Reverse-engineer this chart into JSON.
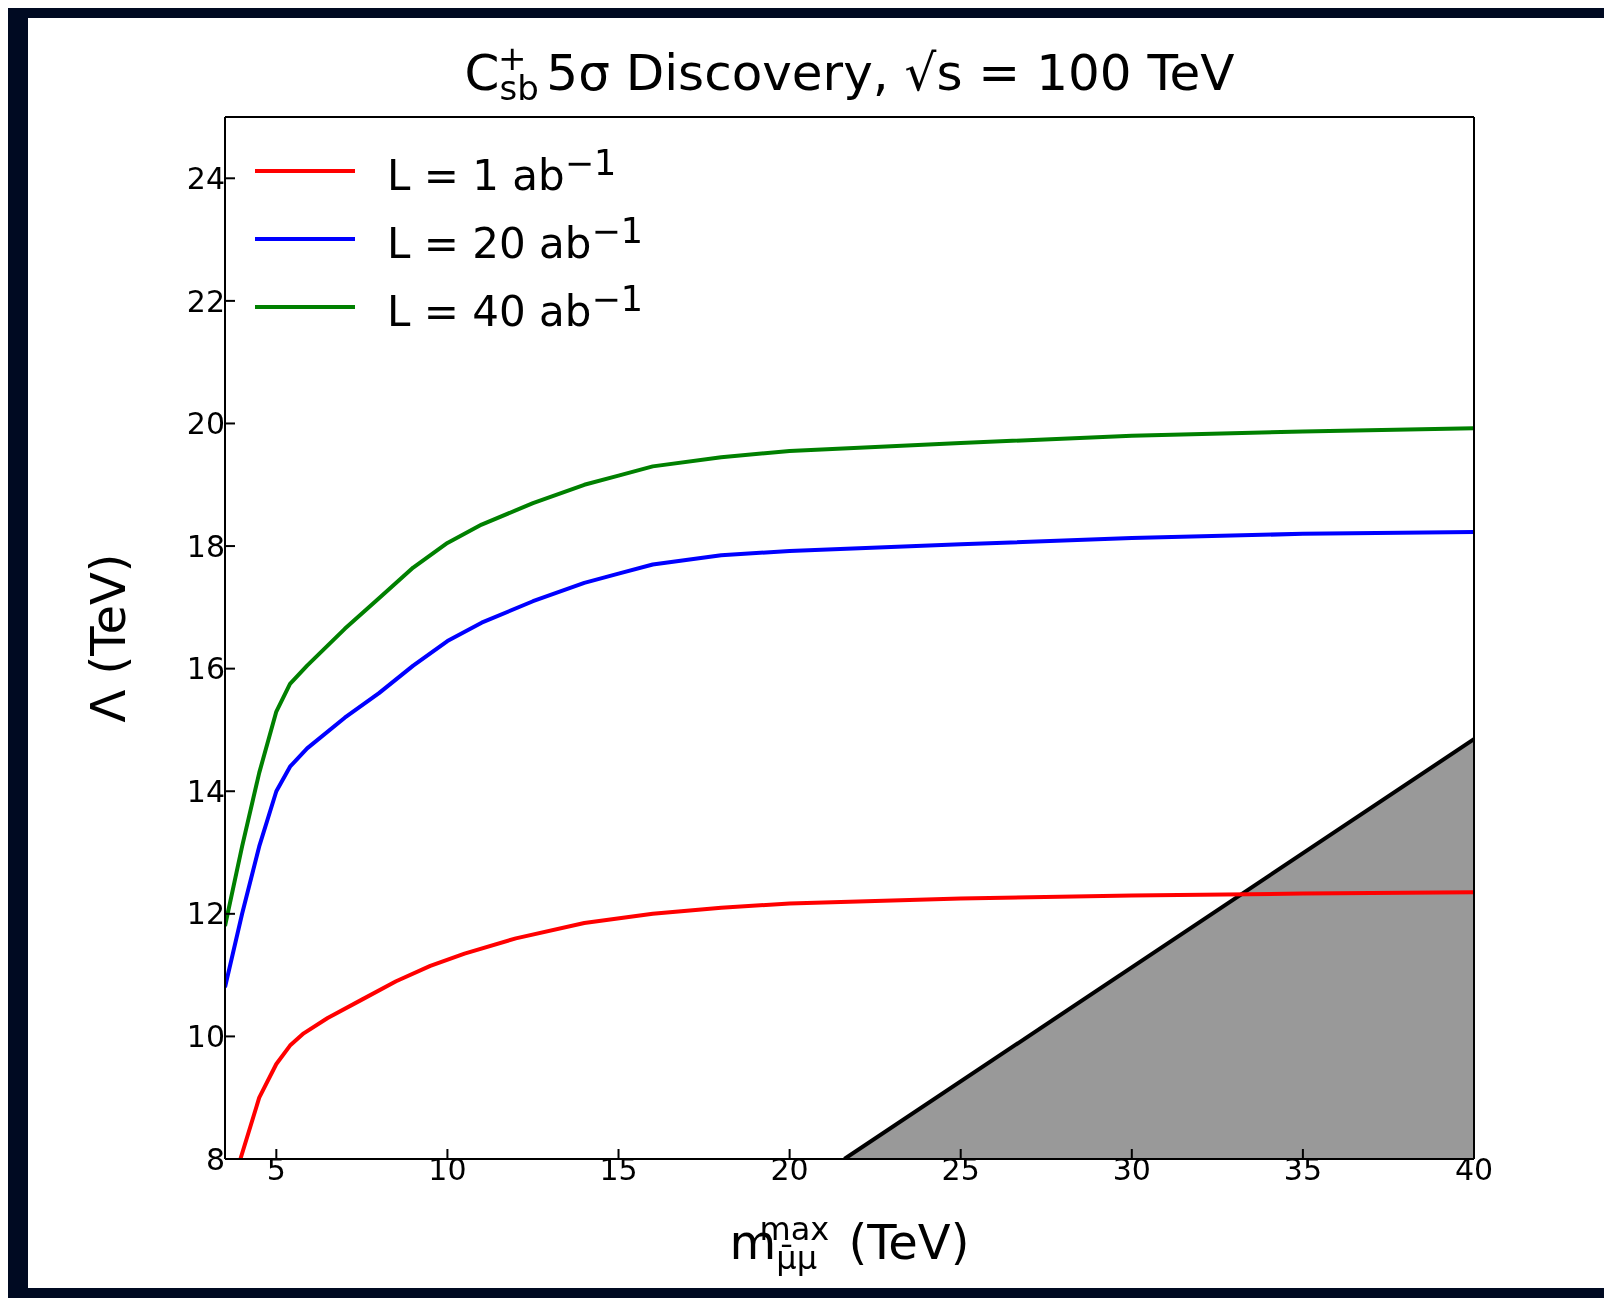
{
  "chart_data": {
    "type": "line",
    "title": "C$_{sb}$$^{+}$ 5σ Discovery, √s = 100 TeV",
    "xlabel": "m$_{μ̄μ}$$^{max}$ (TeV)",
    "ylabel": "Λ (TeV)",
    "xlim": [
      3.5,
      40
    ],
    "ylim": [
      8,
      25
    ],
    "xticks": [
      5,
      10,
      15,
      20,
      25,
      30,
      35,
      40
    ],
    "yticks": [
      8,
      10,
      12,
      14,
      16,
      18,
      20,
      22,
      24
    ],
    "legend": "top left",
    "marker": "none",
    "line_style": "solid",
    "series": [
      {
        "type": "area",
        "color": "#999999",
        "x": [
          21.6,
          40
        ],
        "values": [
          8,
          14.85
        ]
      },
      {
        "name": "L = 1 ab$^{−1}$",
        "color": "#ff0000",
        "x": [
          3.95,
          4.5,
          5,
          5.4,
          5.8,
          6.5,
          7.5,
          8.5,
          9.5,
          10.5,
          12,
          14,
          16,
          18,
          20,
          25,
          30,
          35,
          40
        ],
        "values": [
          8.0,
          9.0,
          9.55,
          9.85,
          10.05,
          10.3,
          10.6,
          10.9,
          11.15,
          11.35,
          11.6,
          11.85,
          12.0,
          12.1,
          12.17,
          12.25,
          12.3,
          12.33,
          12.35
        ]
      },
      {
        "name": "L = 20 ab$^{−1}$",
        "color": "#0000ff",
        "x": [
          3.5,
          4,
          4.5,
          5,
          5.4,
          5.9,
          7,
          8,
          9,
          10,
          11,
          12.5,
          14,
          15,
          16,
          18,
          20,
          25,
          30,
          35,
          40
        ],
        "values": [
          10.8,
          12.0,
          13.1,
          14.0,
          14.4,
          14.7,
          15.2,
          15.6,
          16.05,
          16.45,
          16.75,
          17.1,
          17.4,
          17.55,
          17.7,
          17.85,
          17.92,
          18.03,
          18.13,
          18.2,
          18.23
        ]
      },
      {
        "name": "L = 40 ab$^{−1}$",
        "color": "#008000",
        "x": [
          3.5,
          4,
          4.5,
          5,
          5.4,
          5.9,
          7,
          8,
          9,
          10,
          11,
          12.5,
          14,
          15,
          16,
          18,
          20,
          25,
          30,
          35,
          40
        ],
        "values": [
          11.8,
          13.1,
          14.3,
          15.3,
          15.75,
          16.05,
          16.65,
          17.15,
          17.65,
          18.05,
          18.35,
          18.7,
          19.0,
          19.15,
          19.3,
          19.45,
          19.55,
          19.68,
          19.8,
          19.87,
          19.92
        ]
      }
    ]
  }
}
